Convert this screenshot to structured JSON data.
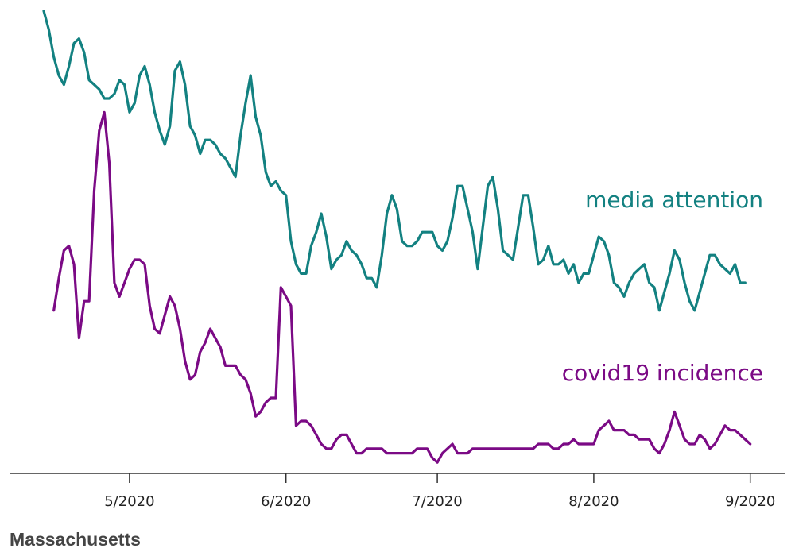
{
  "footer": {
    "title": "Massachusetts"
  },
  "chart_data": {
    "type": "line",
    "x_axis": {
      "kind": "date",
      "range": [
        "2020-04-14",
        "2020-09-02"
      ],
      "ticks": [
        {
          "date": "2020-05-01",
          "label": "5/2020"
        },
        {
          "date": "2020-06-01",
          "label": "6/2020"
        },
        {
          "date": "2020-07-01",
          "label": "7/2020"
        },
        {
          "date": "2020-08-01",
          "label": "8/2020"
        },
        {
          "date": "2020-09-01",
          "label": "9/2020"
        }
      ]
    },
    "y_axis": {
      "visible": false,
      "range": [
        0,
        100
      ]
    },
    "grid": false,
    "series": [
      {
        "name": "media attention",
        "color": "#138181",
        "label_position": "right, above series",
        "points": [
          [
            "2020-04-14",
            99
          ],
          [
            "2020-04-15",
            95
          ],
          [
            "2020-04-16",
            89
          ],
          [
            "2020-04-17",
            85
          ],
          [
            "2020-04-18",
            83
          ],
          [
            "2020-04-19",
            87
          ],
          [
            "2020-04-20",
            92
          ],
          [
            "2020-04-21",
            93
          ],
          [
            "2020-04-22",
            90
          ],
          [
            "2020-04-23",
            84
          ],
          [
            "2020-04-24",
            83
          ],
          [
            "2020-04-25",
            82
          ],
          [
            "2020-04-26",
            80
          ],
          [
            "2020-04-27",
            80
          ],
          [
            "2020-04-28",
            81
          ],
          [
            "2020-04-29",
            84
          ],
          [
            "2020-04-30",
            83
          ],
          [
            "2020-05-01",
            77
          ],
          [
            "2020-05-02",
            79
          ],
          [
            "2020-05-03",
            85
          ],
          [
            "2020-05-04",
            87
          ],
          [
            "2020-05-05",
            83
          ],
          [
            "2020-05-06",
            77
          ],
          [
            "2020-05-07",
            73
          ],
          [
            "2020-05-08",
            70
          ],
          [
            "2020-05-09",
            74
          ],
          [
            "2020-05-10",
            86
          ],
          [
            "2020-05-11",
            88
          ],
          [
            "2020-05-12",
            83
          ],
          [
            "2020-05-13",
            74
          ],
          [
            "2020-05-14",
            72
          ],
          [
            "2020-05-15",
            68
          ],
          [
            "2020-05-16",
            71
          ],
          [
            "2020-05-17",
            71
          ],
          [
            "2020-05-18",
            70
          ],
          [
            "2020-05-19",
            68
          ],
          [
            "2020-05-20",
            67
          ],
          [
            "2020-05-21",
            65
          ],
          [
            "2020-05-22",
            63
          ],
          [
            "2020-05-23",
            72
          ],
          [
            "2020-05-24",
            79
          ],
          [
            "2020-05-25",
            85
          ],
          [
            "2020-05-26",
            76
          ],
          [
            "2020-05-27",
            72
          ],
          [
            "2020-05-28",
            64
          ],
          [
            "2020-05-29",
            61
          ],
          [
            "2020-05-30",
            62
          ],
          [
            "2020-05-31",
            60
          ],
          [
            "2020-06-01",
            59
          ],
          [
            "2020-06-02",
            49
          ],
          [
            "2020-06-03",
            44
          ],
          [
            "2020-06-04",
            42
          ],
          [
            "2020-06-05",
            42
          ],
          [
            "2020-06-06",
            48
          ],
          [
            "2020-06-07",
            51
          ],
          [
            "2020-06-08",
            55
          ],
          [
            "2020-06-09",
            50
          ],
          [
            "2020-06-10",
            43
          ],
          [
            "2020-06-11",
            45
          ],
          [
            "2020-06-12",
            46
          ],
          [
            "2020-06-13",
            49
          ],
          [
            "2020-06-14",
            47
          ],
          [
            "2020-06-15",
            46
          ],
          [
            "2020-06-16",
            44
          ],
          [
            "2020-06-17",
            41
          ],
          [
            "2020-06-18",
            41
          ],
          [
            "2020-06-19",
            39
          ],
          [
            "2020-06-20",
            46
          ],
          [
            "2020-06-21",
            55
          ],
          [
            "2020-06-22",
            59
          ],
          [
            "2020-06-23",
            56
          ],
          [
            "2020-06-24",
            49
          ],
          [
            "2020-06-25",
            48
          ],
          [
            "2020-06-26",
            48
          ],
          [
            "2020-06-27",
            49
          ],
          [
            "2020-06-28",
            51
          ],
          [
            "2020-06-29",
            51
          ],
          [
            "2020-06-30",
            51
          ],
          [
            "2020-07-01",
            48
          ],
          [
            "2020-07-02",
            47
          ],
          [
            "2020-07-03",
            49
          ],
          [
            "2020-07-04",
            54
          ],
          [
            "2020-07-05",
            61
          ],
          [
            "2020-07-06",
            61
          ],
          [
            "2020-07-07",
            56
          ],
          [
            "2020-07-08",
            51
          ],
          [
            "2020-07-09",
            43
          ],
          [
            "2020-07-10",
            52
          ],
          [
            "2020-07-11",
            61
          ],
          [
            "2020-07-12",
            63
          ],
          [
            "2020-07-13",
            56
          ],
          [
            "2020-07-14",
            47
          ],
          [
            "2020-07-15",
            46
          ],
          [
            "2020-07-16",
            45
          ],
          [
            "2020-07-17",
            52
          ],
          [
            "2020-07-18",
            59
          ],
          [
            "2020-07-19",
            59
          ],
          [
            "2020-07-20",
            52
          ],
          [
            "2020-07-21",
            44
          ],
          [
            "2020-07-22",
            45
          ],
          [
            "2020-07-23",
            48
          ],
          [
            "2020-07-24",
            44
          ],
          [
            "2020-07-25",
            44
          ],
          [
            "2020-07-26",
            45
          ],
          [
            "2020-07-27",
            42
          ],
          [
            "2020-07-28",
            44
          ],
          [
            "2020-07-29",
            40
          ],
          [
            "2020-07-30",
            42
          ],
          [
            "2020-07-31",
            42
          ],
          [
            "2020-08-01",
            46
          ],
          [
            "2020-08-02",
            50
          ],
          [
            "2020-08-03",
            49
          ],
          [
            "2020-08-04",
            46
          ],
          [
            "2020-08-05",
            40
          ],
          [
            "2020-08-06",
            39
          ],
          [
            "2020-08-07",
            37
          ],
          [
            "2020-08-08",
            40
          ],
          [
            "2020-08-09",
            42
          ],
          [
            "2020-08-10",
            43
          ],
          [
            "2020-08-11",
            44
          ],
          [
            "2020-08-12",
            40
          ],
          [
            "2020-08-13",
            39
          ],
          [
            "2020-08-14",
            34
          ],
          [
            "2020-08-15",
            38
          ],
          [
            "2020-08-16",
            42
          ],
          [
            "2020-08-17",
            47
          ],
          [
            "2020-08-18",
            45
          ],
          [
            "2020-08-19",
            40
          ],
          [
            "2020-08-20",
            36
          ],
          [
            "2020-08-21",
            34
          ],
          [
            "2020-08-22",
            38
          ],
          [
            "2020-08-23",
            42
          ],
          [
            "2020-08-24",
            46
          ],
          [
            "2020-08-25",
            46
          ],
          [
            "2020-08-26",
            44
          ],
          [
            "2020-08-27",
            43
          ],
          [
            "2020-08-28",
            42
          ],
          [
            "2020-08-29",
            44
          ],
          [
            "2020-08-30",
            40
          ],
          [
            "2020-08-31",
            40
          ]
        ]
      },
      {
        "name": "covid19 incidence",
        "color": "#7B0A85",
        "label_position": "right, above series",
        "points": [
          [
            "2020-04-16",
            34
          ],
          [
            "2020-04-17",
            41
          ],
          [
            "2020-04-18",
            47
          ],
          [
            "2020-04-19",
            48
          ],
          [
            "2020-04-20",
            44
          ],
          [
            "2020-04-21",
            28
          ],
          [
            "2020-04-22",
            36
          ],
          [
            "2020-04-23",
            36
          ],
          [
            "2020-04-24",
            60
          ],
          [
            "2020-04-25",
            73
          ],
          [
            "2020-04-26",
            77
          ],
          [
            "2020-04-27",
            66
          ],
          [
            "2020-04-28",
            40
          ],
          [
            "2020-04-29",
            37
          ],
          [
            "2020-04-30",
            40
          ],
          [
            "2020-05-01",
            43
          ],
          [
            "2020-05-02",
            45
          ],
          [
            "2020-05-03",
            45
          ],
          [
            "2020-05-04",
            44
          ],
          [
            "2020-05-05",
            35
          ],
          [
            "2020-05-06",
            30
          ],
          [
            "2020-05-07",
            29
          ],
          [
            "2020-05-08",
            33
          ],
          [
            "2020-05-09",
            37
          ],
          [
            "2020-05-10",
            35
          ],
          [
            "2020-05-11",
            30
          ],
          [
            "2020-05-12",
            23
          ],
          [
            "2020-05-13",
            19
          ],
          [
            "2020-05-14",
            20
          ],
          [
            "2020-05-15",
            25
          ],
          [
            "2020-05-16",
            27
          ],
          [
            "2020-05-17",
            30
          ],
          [
            "2020-05-18",
            28
          ],
          [
            "2020-05-19",
            26
          ],
          [
            "2020-05-20",
            22
          ],
          [
            "2020-05-21",
            22
          ],
          [
            "2020-05-22",
            22
          ],
          [
            "2020-05-23",
            20
          ],
          [
            "2020-05-24",
            19
          ],
          [
            "2020-05-25",
            16
          ],
          [
            "2020-05-26",
            11
          ],
          [
            "2020-05-27",
            12
          ],
          [
            "2020-05-28",
            14
          ],
          [
            "2020-05-29",
            15
          ],
          [
            "2020-05-30",
            15
          ],
          [
            "2020-05-31",
            39
          ],
          [
            "2020-06-01",
            37
          ],
          [
            "2020-06-02",
            35
          ],
          [
            "2020-06-03",
            9
          ],
          [
            "2020-06-04",
            10
          ],
          [
            "2020-06-05",
            10
          ],
          [
            "2020-06-06",
            9
          ],
          [
            "2020-06-07",
            7
          ],
          [
            "2020-06-08",
            5
          ],
          [
            "2020-06-09",
            4
          ],
          [
            "2020-06-10",
            4
          ],
          [
            "2020-06-11",
            6
          ],
          [
            "2020-06-12",
            7
          ],
          [
            "2020-06-13",
            7
          ],
          [
            "2020-06-14",
            5
          ],
          [
            "2020-06-15",
            3
          ],
          [
            "2020-06-16",
            3
          ],
          [
            "2020-06-17",
            4
          ],
          [
            "2020-06-18",
            4
          ],
          [
            "2020-06-19",
            4
          ],
          [
            "2020-06-20",
            4
          ],
          [
            "2020-06-21",
            3
          ],
          [
            "2020-06-22",
            3
          ],
          [
            "2020-06-23",
            3
          ],
          [
            "2020-06-24",
            3
          ],
          [
            "2020-06-25",
            3
          ],
          [
            "2020-06-26",
            3
          ],
          [
            "2020-06-27",
            4
          ],
          [
            "2020-06-28",
            4
          ],
          [
            "2020-06-29",
            4
          ],
          [
            "2020-06-30",
            2
          ],
          [
            "2020-07-01",
            1
          ],
          [
            "2020-07-02",
            3
          ],
          [
            "2020-07-03",
            4
          ],
          [
            "2020-07-04",
            5
          ],
          [
            "2020-07-05",
            3
          ],
          [
            "2020-07-06",
            3
          ],
          [
            "2020-07-07",
            3
          ],
          [
            "2020-07-08",
            4
          ],
          [
            "2020-07-09",
            4
          ],
          [
            "2020-07-10",
            4
          ],
          [
            "2020-07-11",
            4
          ],
          [
            "2020-07-12",
            4
          ],
          [
            "2020-07-13",
            4
          ],
          [
            "2020-07-14",
            4
          ],
          [
            "2020-07-15",
            4
          ],
          [
            "2020-07-16",
            4
          ],
          [
            "2020-07-17",
            4
          ],
          [
            "2020-07-18",
            4
          ],
          [
            "2020-07-19",
            4
          ],
          [
            "2020-07-20",
            4
          ],
          [
            "2020-07-21",
            5
          ],
          [
            "2020-07-22",
            5
          ],
          [
            "2020-07-23",
            5
          ],
          [
            "2020-07-24",
            4
          ],
          [
            "2020-07-25",
            4
          ],
          [
            "2020-07-26",
            5
          ],
          [
            "2020-07-27",
            5
          ],
          [
            "2020-07-28",
            6
          ],
          [
            "2020-07-29",
            5
          ],
          [
            "2020-07-30",
            5
          ],
          [
            "2020-07-31",
            5
          ],
          [
            "2020-08-01",
            5
          ],
          [
            "2020-08-02",
            8
          ],
          [
            "2020-08-03",
            9
          ],
          [
            "2020-08-04",
            10
          ],
          [
            "2020-08-05",
            8
          ],
          [
            "2020-08-06",
            8
          ],
          [
            "2020-08-07",
            8
          ],
          [
            "2020-08-08",
            7
          ],
          [
            "2020-08-09",
            7
          ],
          [
            "2020-08-10",
            6
          ],
          [
            "2020-08-11",
            6
          ],
          [
            "2020-08-12",
            6
          ],
          [
            "2020-08-13",
            4
          ],
          [
            "2020-08-14",
            3
          ],
          [
            "2020-08-15",
            5
          ],
          [
            "2020-08-16",
            8
          ],
          [
            "2020-08-17",
            12
          ],
          [
            "2020-08-18",
            9
          ],
          [
            "2020-08-19",
            6
          ],
          [
            "2020-08-20",
            5
          ],
          [
            "2020-08-21",
            5
          ],
          [
            "2020-08-22",
            7
          ],
          [
            "2020-08-23",
            6
          ],
          [
            "2020-08-24",
            4
          ],
          [
            "2020-08-25",
            5
          ],
          [
            "2020-08-26",
            7
          ],
          [
            "2020-08-27",
            9
          ],
          [
            "2020-08-28",
            8
          ],
          [
            "2020-08-29",
            8
          ],
          [
            "2020-08-30",
            7
          ],
          [
            "2020-08-31",
            6
          ],
          [
            "2020-09-01",
            5
          ]
        ]
      }
    ]
  }
}
